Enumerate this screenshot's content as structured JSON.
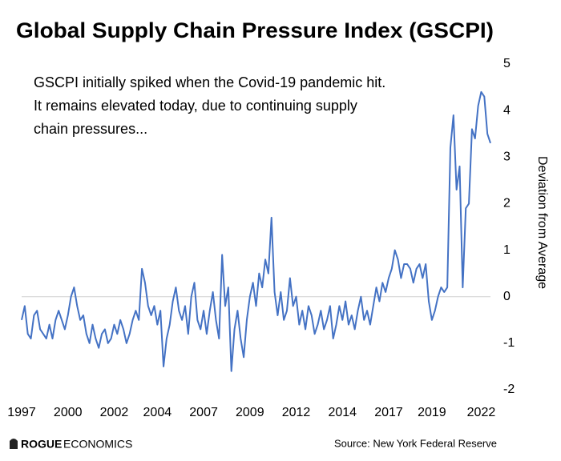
{
  "chart_data": {
    "type": "line",
    "title": "Global Supply Chain Pressure Index (GSCPI)",
    "annotation": [
      "GSCPI initially spiked when the Covid-19 pandemic hit.",
      "It remains elevated today, due to continuing supply",
      "chain pressures..."
    ],
    "y_axis_label": "Deviation from Average",
    "source": "Source: New York Federal Reserve",
    "logo": [
      "ROGUE",
      "ECONOMICS"
    ],
    "categories": [
      "1997",
      null,
      null,
      null,
      null,
      null,
      null,
      null,
      null,
      null,
      null,
      null,
      null,
      null,
      null,
      "2000",
      null,
      null,
      null,
      null,
      null,
      null,
      null,
      null,
      null,
      null,
      null,
      null,
      null,
      null,
      "2002",
      null,
      null,
      null,
      null,
      null,
      null,
      null,
      null,
      null,
      null,
      null,
      null,
      null,
      "2004",
      null,
      null,
      null,
      null,
      null,
      null,
      null,
      null,
      null,
      null,
      null,
      null,
      null,
      null,
      "2007",
      null,
      null,
      null,
      null,
      null,
      null,
      null,
      null,
      null,
      null,
      null,
      null,
      null,
      null,
      "2009",
      null,
      null,
      null,
      null,
      null,
      null,
      null,
      null,
      null,
      null,
      null,
      null,
      null,
      null,
      "2012",
      null,
      null,
      null,
      null,
      null,
      null,
      null,
      null,
      null,
      null,
      null,
      null,
      null,
      null,
      "2014",
      null,
      null,
      null,
      null,
      null,
      null,
      null,
      null,
      null,
      null,
      null,
      null,
      null,
      null,
      "2017",
      null,
      null,
      null,
      null,
      null,
      null,
      null,
      null,
      null,
      null,
      null,
      null,
      null,
      "2019",
      null,
      null,
      null,
      null,
      null,
      null,
      null,
      null,
      null,
      null,
      null,
      null,
      null,
      null,
      null,
      "2022",
      null,
      null,
      null
    ],
    "series": [
      {
        "name": "GSCPI",
        "color": "#4472c4",
        "values": [
          -0.5,
          -0.2,
          -0.8,
          -0.9,
          -0.4,
          -0.3,
          -0.7,
          -0.8,
          -0.9,
          -0.6,
          -0.9,
          -0.5,
          -0.3,
          -0.5,
          -0.7,
          -0.4,
          0.0,
          0.2,
          -0.2,
          -0.5,
          -0.4,
          -0.8,
          -1.0,
          -0.6,
          -0.9,
          -1.1,
          -0.8,
          -0.7,
          -1.0,
          -0.9,
          -0.6,
          -0.8,
          -0.5,
          -0.7,
          -1.0,
          -0.8,
          -0.5,
          -0.3,
          -0.5,
          0.6,
          0.3,
          -0.2,
          -0.4,
          -0.2,
          -0.6,
          -0.3,
          -1.5,
          -0.9,
          -0.6,
          -0.1,
          0.2,
          -0.3,
          -0.5,
          -0.2,
          -0.8,
          0.0,
          0.3,
          -0.5,
          -0.7,
          -0.3,
          -0.8,
          -0.3,
          0.1,
          -0.5,
          -0.9,
          0.9,
          -0.2,
          0.2,
          -1.6,
          -0.7,
          -0.3,
          -0.9,
          -1.3,
          -0.5,
          0.0,
          0.3,
          -0.2,
          0.5,
          0.2,
          0.8,
          0.5,
          1.7,
          0.1,
          -0.4,
          0.1,
          -0.5,
          -0.3,
          0.4,
          -0.2,
          0.0,
          -0.6,
          -0.3,
          -0.7,
          -0.2,
          -0.4,
          -0.8,
          -0.6,
          -0.3,
          -0.7,
          -0.5,
          -0.2,
          -0.9,
          -0.6,
          -0.2,
          -0.5,
          -0.1,
          -0.6,
          -0.4,
          -0.7,
          -0.3,
          0.0,
          -0.5,
          -0.3,
          -0.6,
          -0.2,
          0.2,
          -0.1,
          0.3,
          0.1,
          0.4,
          0.6,
          1.0,
          0.8,
          0.4,
          0.7,
          0.7,
          0.6,
          0.3,
          0.6,
          0.7,
          0.4,
          0.7,
          -0.1,
          -0.5,
          -0.3,
          0.0,
          0.2,
          0.1,
          0.2,
          3.2,
          3.9,
          2.3,
          2.8,
          0.2,
          1.9,
          2.0,
          3.6,
          3.4,
          4.1,
          4.4,
          4.3,
          3.5,
          3.3
        ]
      }
    ],
    "ylim": [
      -2,
      5
    ],
    "yticks": [
      5,
      4,
      3,
      2,
      1,
      0,
      -1,
      -2
    ],
    "zero_line": true
  }
}
